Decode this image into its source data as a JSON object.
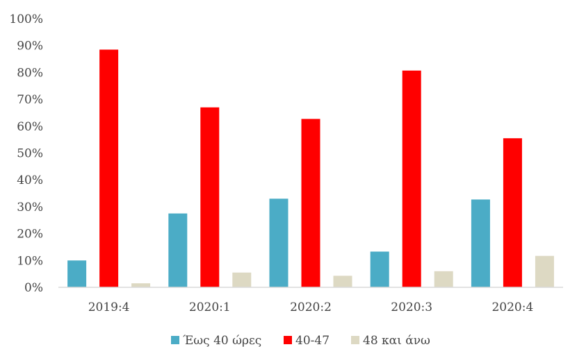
{
  "chart_data": {
    "type": "bar",
    "categories": [
      "2019:4",
      "2020:1",
      "2020:2",
      "2020:3",
      "2020:4"
    ],
    "series": [
      {
        "name": "Έως 40 ώρες",
        "color": "#4BACC6",
        "values": [
          10,
          27.5,
          33,
          13.3,
          32.7
        ]
      },
      {
        "name": "40-47",
        "color": "#FF0000",
        "values": [
          88.5,
          67,
          62.7,
          80.7,
          55.5
        ]
      },
      {
        "name": "48 και άνω",
        "color": "#DDD9C3",
        "values": [
          1.5,
          5.5,
          4.3,
          6,
          11.7
        ]
      }
    ],
    "ylim": [
      0,
      100
    ],
    "yticks": [
      0,
      10,
      20,
      30,
      40,
      50,
      60,
      70,
      80,
      90,
      100
    ],
    "y_format": "percent",
    "grid": false,
    "legend_position": "bottom"
  }
}
